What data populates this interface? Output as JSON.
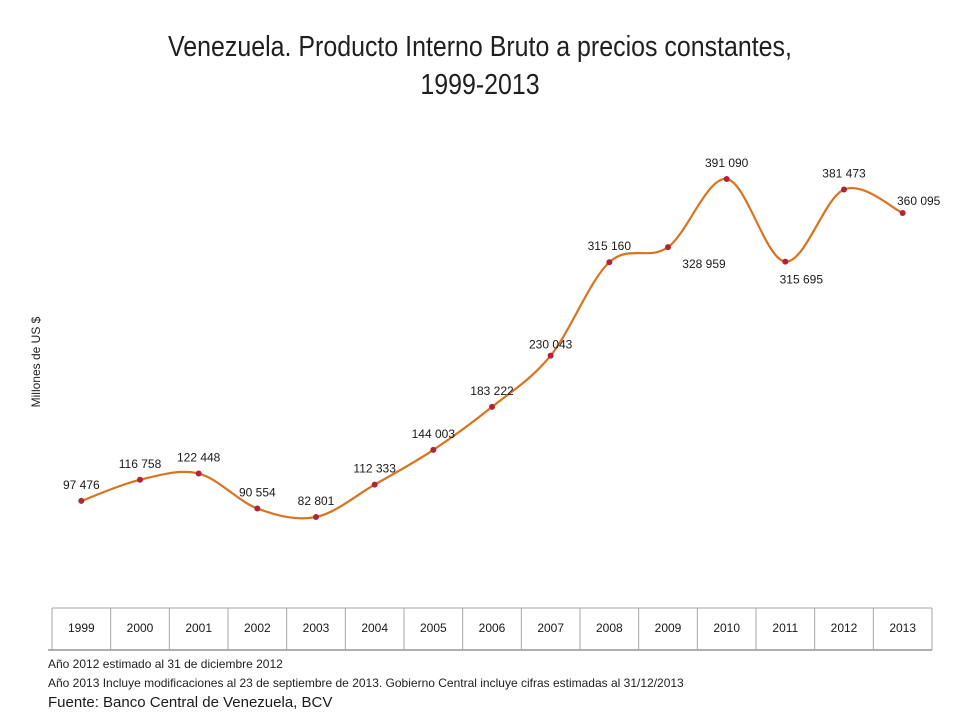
{
  "chart_data": {
    "type": "line",
    "title": "Venezuela. Producto Interno Bruto a precios constantes,",
    "subtitle": "1999-2013",
    "xlabel": "",
    "ylabel": "Millones de US $",
    "categories": [
      "1999",
      "2000",
      "2001",
      "2002",
      "2003",
      "2004",
      "2005",
      "2006",
      "2007",
      "2008",
      "2009",
      "2010",
      "2011",
      "2012",
      "2013"
    ],
    "series": [
      {
        "values": [
          97476,
          116758,
          122448,
          90554,
          82801,
          112333,
          144003,
          183222,
          230043,
          315160,
          328959,
          391090,
          315695,
          381473,
          360095
        ],
        "labels": [
          "97 476",
          "116 758",
          "122 448",
          "90 554",
          "82 801",
          "112 333",
          "144 003",
          "183 222",
          "230 043",
          "315 160",
          "328 959",
          "391 090",
          "315 695",
          "381 473",
          "360 095"
        ],
        "line_color": "#d9731e",
        "marker_color": "#b0243a"
      }
    ],
    "ylim": [
      0,
      420000
    ],
    "grid": false,
    "legend": "none"
  },
  "notes": [
    "Año 2012 estimado al 31 de diciembre 2012",
    "Año 2013 Incluye modificaciones al 23 de septiembre de 2013. Gobierno Central incluye cifras estimadas al 31/12/2013"
  ],
  "source": "Fuente: Banco Central de Venezuela, BCV"
}
